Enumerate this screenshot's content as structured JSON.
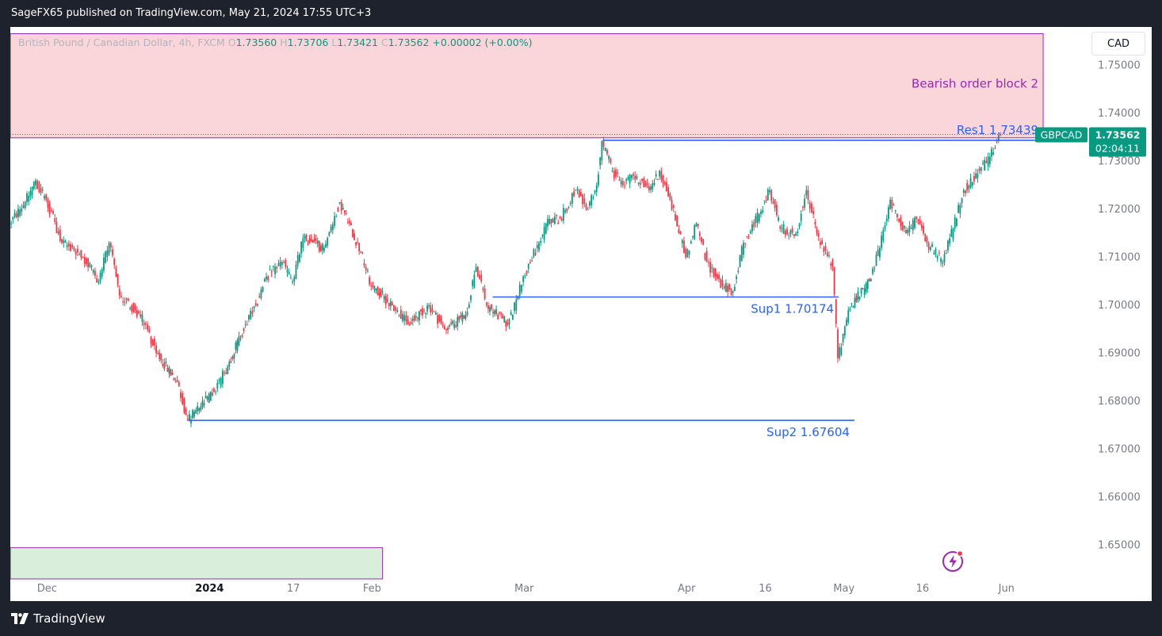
{
  "header": {
    "text": "SageFX65 published on TradingView.com, May 21, 2024 17:55 UTC+3"
  },
  "footer": {
    "brand": "TradingView"
  },
  "toolbar": {
    "currency": "CAD"
  },
  "legend": {
    "symbol": "British Pound / Canadian Dollar, 4h, FXCM",
    "o_label": "O",
    "o": "1.73560",
    "h_label": "H",
    "h": "1.73706",
    "l_label": "L",
    "l": "1.73421",
    "c_label": "C",
    "c": "1.73562",
    "change": "+0.00002 (+0.00%)"
  },
  "badge": {
    "symbol": "GBPCAD",
    "price": "1.73562",
    "countdown": "02:04:11"
  },
  "colors": {
    "up": "#089981",
    "down": "#f23645",
    "level": "#2962ff",
    "zone_border": "#9c27b0",
    "bearish_zone": "#fad5d9",
    "bullish_zone": "#d9eedb",
    "zone_text": "#9c27b0"
  },
  "chart_data": {
    "type": "candlestick",
    "ylim": [
      1.643,
      1.758
    ],
    "y_ticks": [
      "1.75000",
      "1.74000",
      "1.73000",
      "1.72000",
      "1.71000",
      "1.70000",
      "1.69000",
      "1.68000",
      "1.67000",
      "1.66000",
      "1.65000"
    ],
    "y_tick_values": [
      1.75,
      1.74,
      1.73,
      1.72,
      1.71,
      1.7,
      1.69,
      1.68,
      1.67,
      1.66,
      1.65
    ],
    "x_range": [
      "2023-11-24",
      "2024-06-03"
    ],
    "x_ticks": [
      {
        "label": "Dec",
        "date": "2023-12-01",
        "bold": false
      },
      {
        "label": "2024",
        "date": "2024-01-01",
        "bold": true
      },
      {
        "label": "17",
        "date": "2024-01-17",
        "bold": false
      },
      {
        "label": "Feb",
        "date": "2024-02-01",
        "bold": false
      },
      {
        "label": "Mar",
        "date": "2024-03-01",
        "bold": false
      },
      {
        "label": "Apr",
        "date": "2024-04-01",
        "bold": false
      },
      {
        "label": "16",
        "date": "2024-04-16",
        "bold": false
      },
      {
        "label": "May",
        "date": "2024-05-01",
        "bold": false
      },
      {
        "label": "16",
        "date": "2024-05-16",
        "bold": false
      },
      {
        "label": "Jun",
        "date": "2024-06-01",
        "bold": false
      }
    ],
    "price_path": [
      [
        "2023-11-24",
        1.717
      ],
      [
        "2023-11-27",
        1.7215
      ],
      [
        "2023-11-29",
        1.726
      ],
      [
        "2023-12-01",
        1.722
      ],
      [
        "2023-12-04",
        1.713
      ],
      [
        "2023-12-06",
        1.712
      ],
      [
        "2023-12-08",
        1.71
      ],
      [
        "2023-12-11",
        1.705
      ],
      [
        "2023-12-13",
        1.713
      ],
      [
        "2023-12-15",
        1.702
      ],
      [
        "2023-12-18",
        1.699
      ],
      [
        "2023-12-20",
        1.696
      ],
      [
        "2023-12-22",
        1.69
      ],
      [
        "2023-12-26",
        1.684
      ],
      [
        "2023-12-28",
        1.676
      ],
      [
        "2024-01-02",
        1.682
      ],
      [
        "2024-01-04",
        1.686
      ],
      [
        "2024-01-08",
        1.696
      ],
      [
        "2024-01-10",
        1.7
      ],
      [
        "2024-01-12",
        1.706
      ],
      [
        "2024-01-15",
        1.709
      ],
      [
        "2024-01-17",
        1.705
      ],
      [
        "2024-01-19",
        1.714
      ],
      [
        "2024-01-23",
        1.712
      ],
      [
        "2024-01-26",
        1.7215
      ],
      [
        "2024-01-30",
        1.711
      ],
      [
        "2024-02-01",
        1.704
      ],
      [
        "2024-02-05",
        1.7
      ],
      [
        "2024-02-08",
        1.696
      ],
      [
        "2024-02-12",
        1.7
      ],
      [
        "2024-02-15",
        1.695
      ],
      [
        "2024-02-19",
        1.698
      ],
      [
        "2024-02-21",
        1.708
      ],
      [
        "2024-02-23",
        1.7
      ],
      [
        "2024-02-27",
        1.696
      ],
      [
        "2024-02-29",
        1.702
      ],
      [
        "2024-03-01",
        1.706
      ],
      [
        "2024-03-04",
        1.713
      ],
      [
        "2024-03-06",
        1.718
      ],
      [
        "2024-03-08",
        1.718
      ],
      [
        "2024-03-11",
        1.724
      ],
      [
        "2024-03-13",
        1.72
      ],
      [
        "2024-03-15",
        1.725
      ],
      [
        "2024-03-16",
        1.7342
      ],
      [
        "2024-03-18",
        1.728
      ],
      [
        "2024-03-20",
        1.725
      ],
      [
        "2024-03-22",
        1.727
      ],
      [
        "2024-03-25",
        1.724
      ],
      [
        "2024-03-27",
        1.728
      ],
      [
        "2024-03-29",
        1.722
      ],
      [
        "2024-04-01",
        1.71
      ],
      [
        "2024-04-03",
        1.717
      ],
      [
        "2024-04-05",
        1.709
      ],
      [
        "2024-04-08",
        1.704
      ],
      [
        "2024-04-10",
        1.703
      ],
      [
        "2024-04-12",
        1.713
      ],
      [
        "2024-04-15",
        1.719
      ],
      [
        "2024-04-17",
        1.724
      ],
      [
        "2024-04-19",
        1.716
      ],
      [
        "2024-04-22",
        1.715
      ],
      [
        "2024-04-24",
        1.724
      ],
      [
        "2024-04-26",
        1.715
      ],
      [
        "2024-04-29",
        1.708
      ],
      [
        "2024-04-30",
        1.689
      ],
      [
        "2024-05-02",
        1.699
      ],
      [
        "2024-05-06",
        1.705
      ],
      [
        "2024-05-08",
        1.712
      ],
      [
        "2024-05-10",
        1.722
      ],
      [
        "2024-05-13",
        1.715
      ],
      [
        "2024-05-15",
        1.718
      ],
      [
        "2024-05-17",
        1.713
      ],
      [
        "2024-05-20",
        1.709
      ],
      [
        "2024-05-22",
        1.716
      ],
      [
        "2024-05-24",
        1.724
      ],
      [
        "2024-05-27",
        1.728
      ],
      [
        "2024-05-29",
        1.731
      ],
      [
        "2024-05-31",
        1.7356
      ]
    ],
    "levels": [
      {
        "name": "Res1",
        "label": "Res1 1.73439",
        "value": 1.73439,
        "from": "2024-03-16",
        "to": "2024-06-08"
      },
      {
        "name": "Sup1",
        "label": "Sup1 1.70174",
        "value": 1.70174,
        "from": "2024-02-24",
        "to": "2024-04-30"
      },
      {
        "name": "Sup2",
        "label": "Sup2 1.67604",
        "value": 1.67604,
        "from": "2023-12-28",
        "to": "2024-05-03"
      }
    ],
    "zones": [
      {
        "name": "bearish",
        "label": "Bearish order block 2",
        "top": 1.7566,
        "bottom": 1.7349,
        "from": "2023-11-24",
        "to": "2024-06-08"
      },
      {
        "name": "bullish",
        "top": 1.6495,
        "bottom": 1.643,
        "from": "2023-11-24",
        "to": "2024-02-03"
      }
    ],
    "last_price": 1.73562
  }
}
